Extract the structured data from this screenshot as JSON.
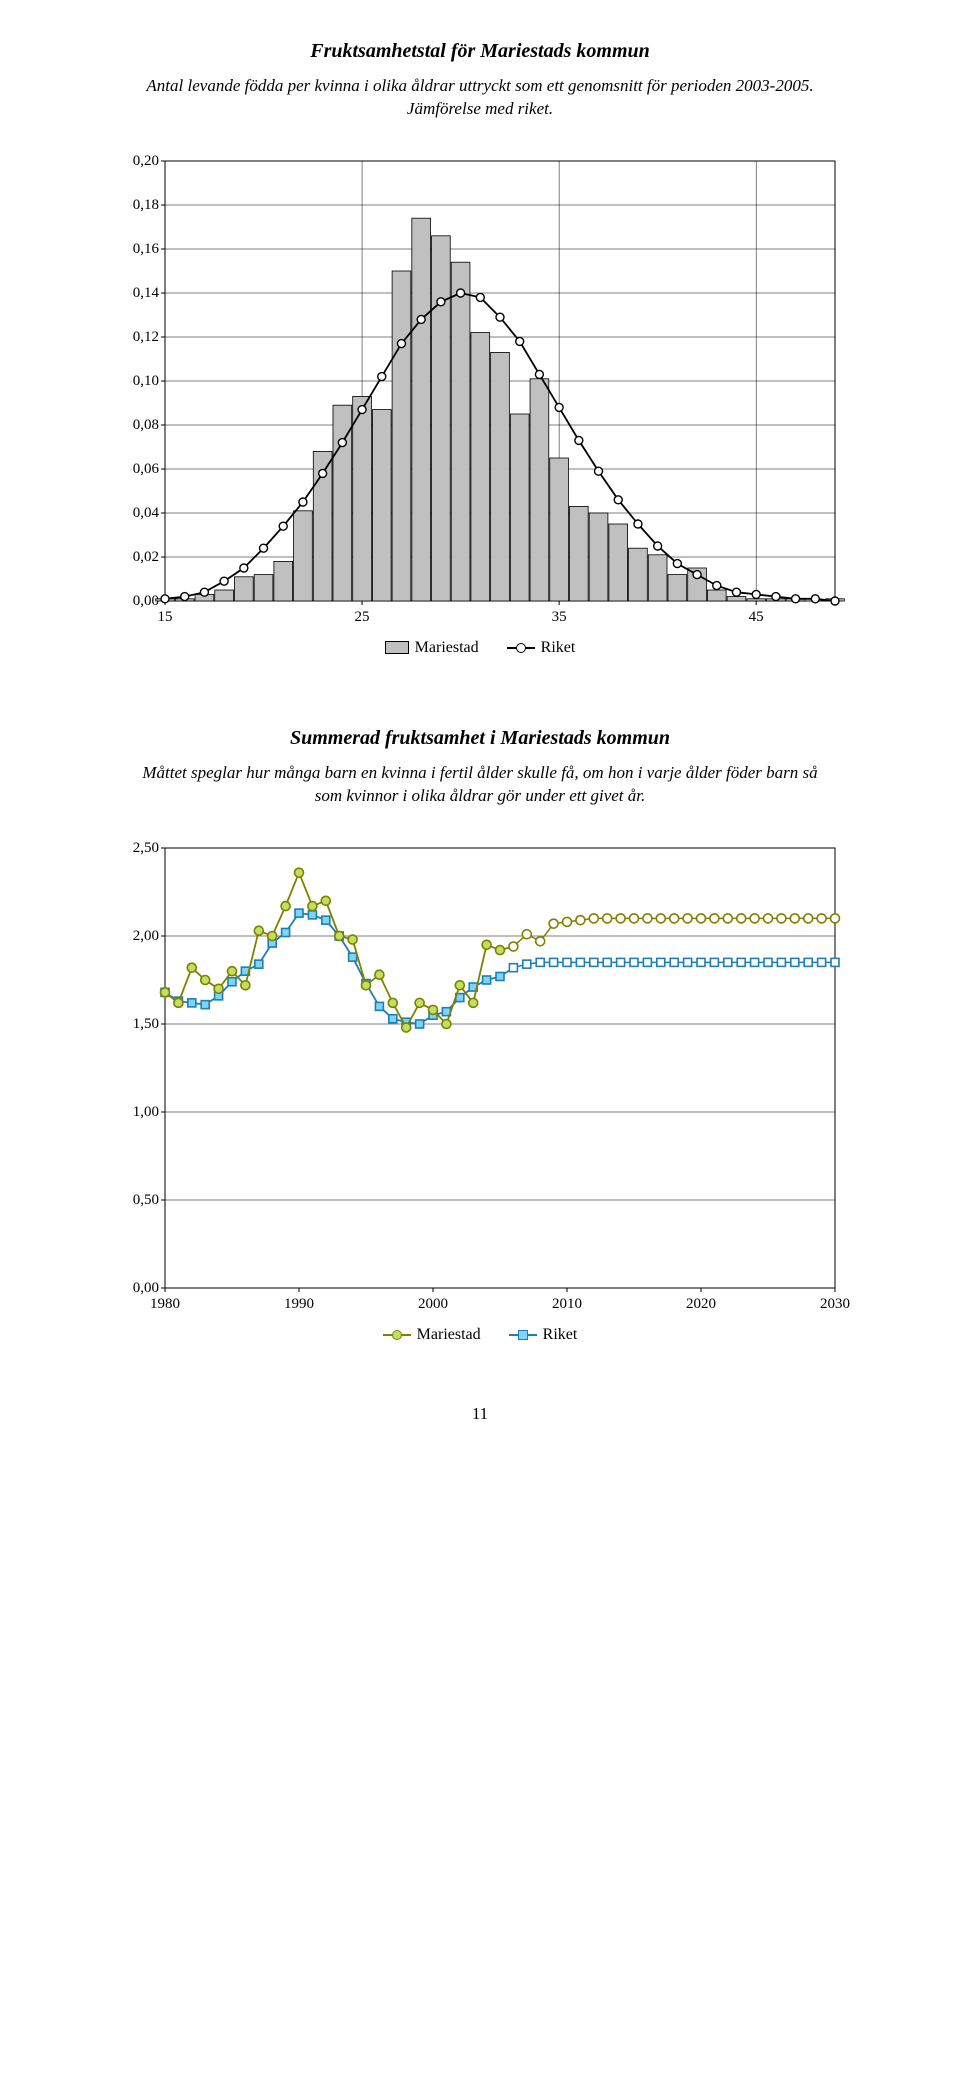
{
  "chart1": {
    "title": "Fruktsamhetstal för Mariestads kommun",
    "subtitle": "Antal levande födda per kvinna i olika åldrar uttryckt som ett genomsnitt för perioden 2003-2005. Jämförelse med riket.",
    "type": "bar+line",
    "x_range": [
      15,
      49
    ],
    "x_ticks": [
      15,
      25,
      35,
      45
    ],
    "y_range": [
      0,
      0.2
    ],
    "y_ticks": [
      "0,00",
      "0,02",
      "0,04",
      "0,06",
      "0,08",
      "0,10",
      "0,12",
      "0,14",
      "0,16",
      "0,18",
      "0,20"
    ],
    "bar_color": "#c0c0c0",
    "bar_border": "#000000",
    "line_color": "#000000",
    "marker_fill": "#ffffff",
    "marker_stroke": "#000000",
    "grid_color": "#000000",
    "background": "#ffffff",
    "bars": [
      {
        "x": 15,
        "y": 0.001
      },
      {
        "x": 16,
        "y": 0.001
      },
      {
        "x": 17,
        "y": 0.003
      },
      {
        "x": 18,
        "y": 0.005
      },
      {
        "x": 19,
        "y": 0.011
      },
      {
        "x": 20,
        "y": 0.012
      },
      {
        "x": 21,
        "y": 0.018
      },
      {
        "x": 22,
        "y": 0.041
      },
      {
        "x": 23,
        "y": 0.068
      },
      {
        "x": 24,
        "y": 0.089
      },
      {
        "x": 25,
        "y": 0.093
      },
      {
        "x": 26,
        "y": 0.087
      },
      {
        "x": 27,
        "y": 0.15
      },
      {
        "x": 28,
        "y": 0.174
      },
      {
        "x": 29,
        "y": 0.166
      },
      {
        "x": 30,
        "y": 0.154
      },
      {
        "x": 31,
        "y": 0.122
      },
      {
        "x": 32,
        "y": 0.113
      },
      {
        "x": 33,
        "y": 0.085
      },
      {
        "x": 34,
        "y": 0.101
      },
      {
        "x": 35,
        "y": 0.065
      },
      {
        "x": 36,
        "y": 0.043
      },
      {
        "x": 37,
        "y": 0.04
      },
      {
        "x": 38,
        "y": 0.035
      },
      {
        "x": 39,
        "y": 0.024
      },
      {
        "x": 40,
        "y": 0.021
      },
      {
        "x": 41,
        "y": 0.012
      },
      {
        "x": 42,
        "y": 0.015
      },
      {
        "x": 43,
        "y": 0.005
      },
      {
        "x": 44,
        "y": 0.002
      },
      {
        "x": 45,
        "y": 0.001
      },
      {
        "x": 46,
        "y": 0.001
      },
      {
        "x": 47,
        "y": 0.001
      },
      {
        "x": 48,
        "y": 0.0
      },
      {
        "x": 49,
        "y": 0.001
      }
    ],
    "line": [
      {
        "x": 15,
        "y": 0.001
      },
      {
        "x": 16,
        "y": 0.002
      },
      {
        "x": 17,
        "y": 0.004
      },
      {
        "x": 18,
        "y": 0.009
      },
      {
        "x": 19,
        "y": 0.015
      },
      {
        "x": 20,
        "y": 0.024
      },
      {
        "x": 21,
        "y": 0.034
      },
      {
        "x": 22,
        "y": 0.045
      },
      {
        "x": 23,
        "y": 0.058
      },
      {
        "x": 24,
        "y": 0.072
      },
      {
        "x": 25,
        "y": 0.087
      },
      {
        "x": 26,
        "y": 0.102
      },
      {
        "x": 27,
        "y": 0.117
      },
      {
        "x": 28,
        "y": 0.128
      },
      {
        "x": 29,
        "y": 0.136
      },
      {
        "x": 30,
        "y": 0.14
      },
      {
        "x": 31,
        "y": 0.138
      },
      {
        "x": 32,
        "y": 0.129
      },
      {
        "x": 33,
        "y": 0.118
      },
      {
        "x": 34,
        "y": 0.103
      },
      {
        "x": 35,
        "y": 0.088
      },
      {
        "x": 36,
        "y": 0.073
      },
      {
        "x": 37,
        "y": 0.059
      },
      {
        "x": 38,
        "y": 0.046
      },
      {
        "x": 39,
        "y": 0.035
      },
      {
        "x": 40,
        "y": 0.025
      },
      {
        "x": 41,
        "y": 0.017
      },
      {
        "x": 42,
        "y": 0.012
      },
      {
        "x": 43,
        "y": 0.007
      },
      {
        "x": 44,
        "y": 0.004
      },
      {
        "x": 45,
        "y": 0.003
      },
      {
        "x": 46,
        "y": 0.002
      },
      {
        "x": 47,
        "y": 0.001
      },
      {
        "x": 48,
        "y": 0.001
      },
      {
        "x": 49,
        "y": 0.0
      }
    ],
    "legend": [
      {
        "label": "Mariestad",
        "type": "bar"
      },
      {
        "label": "Riket",
        "type": "line-circle"
      }
    ]
  },
  "chart2": {
    "title": "Summerad fruktsamhet i Mariestads kommun",
    "subtitle": "Måttet speglar hur många barn en kvinna i fertil ålder skulle få, om hon i varje ålder föder barn så som kvinnor i olika åldrar gör under ett givet år.",
    "type": "line",
    "x_range": [
      1980,
      2030
    ],
    "x_ticks": [
      1980,
      1990,
      2000,
      2010,
      2020,
      2030
    ],
    "y_range": [
      0,
      2.5
    ],
    "y_ticks": [
      "0,00",
      "0,50",
      "1,00",
      "1,50",
      "2,00",
      "2,50"
    ],
    "grid_color": "#000000",
    "background": "#ffffff",
    "series": [
      {
        "name": "Mariestad",
        "line_color": "#808000",
        "marker_stroke": "#808000",
        "marker_fill": "#c0e060",
        "marker_shape": "circle",
        "data": [
          {
            "x": 1980,
            "y": 1.68
          },
          {
            "x": 1981,
            "y": 1.62
          },
          {
            "x": 1982,
            "y": 1.82
          },
          {
            "x": 1983,
            "y": 1.75
          },
          {
            "x": 1984,
            "y": 1.7
          },
          {
            "x": 1985,
            "y": 1.8
          },
          {
            "x": 1986,
            "y": 1.72
          },
          {
            "x": 1987,
            "y": 2.03
          },
          {
            "x": 1988,
            "y": 2.0
          },
          {
            "x": 1989,
            "y": 2.17
          },
          {
            "x": 1990,
            "y": 2.36
          },
          {
            "x": 1991,
            "y": 2.17
          },
          {
            "x": 1992,
            "y": 2.2
          },
          {
            "x": 1993,
            "y": 2.0
          },
          {
            "x": 1994,
            "y": 1.98
          },
          {
            "x": 1995,
            "y": 1.72
          },
          {
            "x": 1996,
            "y": 1.78
          },
          {
            "x": 1997,
            "y": 1.62
          },
          {
            "x": 1998,
            "y": 1.48
          },
          {
            "x": 1999,
            "y": 1.62
          },
          {
            "x": 2000,
            "y": 1.58
          },
          {
            "x": 2001,
            "y": 1.5
          },
          {
            "x": 2002,
            "y": 1.72
          },
          {
            "x": 2003,
            "y": 1.62
          },
          {
            "x": 2004,
            "y": 1.95
          },
          {
            "x": 2005,
            "y": 1.92
          },
          {
            "x": 2006,
            "y": 1.94
          },
          {
            "x": 2007,
            "y": 2.01
          },
          {
            "x": 2008,
            "y": 1.97
          },
          {
            "x": 2009,
            "y": 2.07
          },
          {
            "x": 2010,
            "y": 2.08
          },
          {
            "x": 2011,
            "y": 2.09
          },
          {
            "x": 2012,
            "y": 2.1
          },
          {
            "x": 2013,
            "y": 2.1
          },
          {
            "x": 2014,
            "y": 2.1
          },
          {
            "x": 2015,
            "y": 2.1
          },
          {
            "x": 2016,
            "y": 2.1
          },
          {
            "x": 2017,
            "y": 2.1
          },
          {
            "x": 2018,
            "y": 2.1
          },
          {
            "x": 2019,
            "y": 2.1
          },
          {
            "x": 2020,
            "y": 2.1
          },
          {
            "x": 2021,
            "y": 2.1
          },
          {
            "x": 2022,
            "y": 2.1
          },
          {
            "x": 2023,
            "y": 2.1
          },
          {
            "x": 2024,
            "y": 2.1
          },
          {
            "x": 2025,
            "y": 2.1
          },
          {
            "x": 2026,
            "y": 2.1
          },
          {
            "x": 2027,
            "y": 2.1
          },
          {
            "x": 2028,
            "y": 2.1
          },
          {
            "x": 2029,
            "y": 2.1
          },
          {
            "x": 2030,
            "y": 2.1
          }
        ]
      },
      {
        "name": "Riket",
        "line_color": "#1f7faf",
        "marker_stroke": "#1f7faf",
        "marker_fill": "#7fd4ff",
        "marker_shape": "square",
        "data": [
          {
            "x": 1980,
            "y": 1.68
          },
          {
            "x": 1981,
            "y": 1.63
          },
          {
            "x": 1982,
            "y": 1.62
          },
          {
            "x": 1983,
            "y": 1.61
          },
          {
            "x": 1984,
            "y": 1.66
          },
          {
            "x": 1985,
            "y": 1.74
          },
          {
            "x": 1986,
            "y": 1.8
          },
          {
            "x": 1987,
            "y": 1.84
          },
          {
            "x": 1988,
            "y": 1.96
          },
          {
            "x": 1989,
            "y": 2.02
          },
          {
            "x": 1990,
            "y": 2.13
          },
          {
            "x": 1991,
            "y": 2.12
          },
          {
            "x": 1992,
            "y": 2.09
          },
          {
            "x": 1993,
            "y": 2.0
          },
          {
            "x": 1994,
            "y": 1.88
          },
          {
            "x": 1995,
            "y": 1.73
          },
          {
            "x": 1996,
            "y": 1.6
          },
          {
            "x": 1997,
            "y": 1.53
          },
          {
            "x": 1998,
            "y": 1.51
          },
          {
            "x": 1999,
            "y": 1.5
          },
          {
            "x": 2000,
            "y": 1.55
          },
          {
            "x": 2001,
            "y": 1.57
          },
          {
            "x": 2002,
            "y": 1.65
          },
          {
            "x": 2003,
            "y": 1.71
          },
          {
            "x": 2004,
            "y": 1.75
          },
          {
            "x": 2005,
            "y": 1.77
          },
          {
            "x": 2006,
            "y": 1.82
          },
          {
            "x": 2007,
            "y": 1.84
          },
          {
            "x": 2008,
            "y": 1.85
          },
          {
            "x": 2009,
            "y": 1.85
          },
          {
            "x": 2010,
            "y": 1.85
          },
          {
            "x": 2011,
            "y": 1.85
          },
          {
            "x": 2012,
            "y": 1.85
          },
          {
            "x": 2013,
            "y": 1.85
          },
          {
            "x": 2014,
            "y": 1.85
          },
          {
            "x": 2015,
            "y": 1.85
          },
          {
            "x": 2016,
            "y": 1.85
          },
          {
            "x": 2017,
            "y": 1.85
          },
          {
            "x": 2018,
            "y": 1.85
          },
          {
            "x": 2019,
            "y": 1.85
          },
          {
            "x": 2020,
            "y": 1.85
          },
          {
            "x": 2021,
            "y": 1.85
          },
          {
            "x": 2022,
            "y": 1.85
          },
          {
            "x": 2023,
            "y": 1.85
          },
          {
            "x": 2024,
            "y": 1.85
          },
          {
            "x": 2025,
            "y": 1.85
          },
          {
            "x": 2026,
            "y": 1.85
          },
          {
            "x": 2027,
            "y": 1.85
          },
          {
            "x": 2028,
            "y": 1.85
          },
          {
            "x": 2029,
            "y": 1.85
          },
          {
            "x": 2030,
            "y": 1.85
          }
        ]
      }
    ],
    "legend": [
      {
        "label": "Mariestad",
        "type": "line-circle-green"
      },
      {
        "label": "Riket",
        "type": "line-square-blue"
      }
    ]
  },
  "page_number": "11"
}
